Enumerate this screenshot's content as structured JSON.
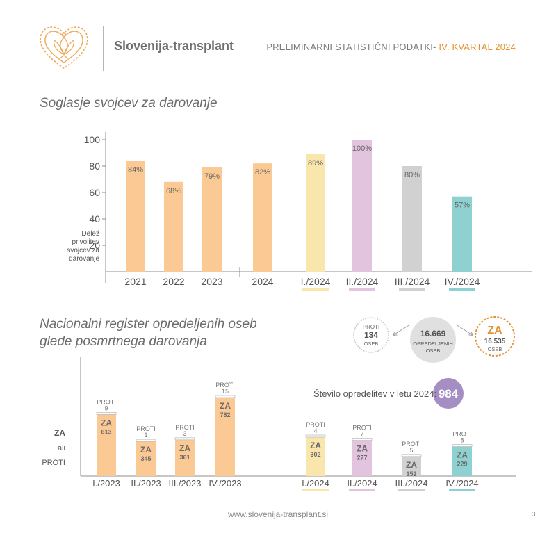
{
  "header": {
    "brand": "Slovenija-transplant",
    "title_prefix": "PRELIMINARNI STATISTIČNI PODATKI- ",
    "title_highlight": "IV. KVARTAL 2024"
  },
  "colors": {
    "orange": "#fbc994",
    "yellow": "#f9e6ac",
    "pink": "#e3c4de",
    "gray": "#d1d1d1",
    "teal": "#8fd0d0",
    "accent": "#e3922f",
    "purple": "#a58ec4"
  },
  "chart_data": [
    {
      "type": "bar",
      "title": "Soglasje svojcev za darovanje",
      "ylabel": "Delež privolitev svojcev za darovanje",
      "ylim": [
        0,
        110
      ],
      "yticks": [
        20,
        40,
        60,
        80,
        100
      ],
      "categories": [
        "2021",
        "2022",
        "2023",
        "2024",
        "I./2024",
        "II./2024",
        "III./2024",
        "IV./2024"
      ],
      "values": [
        84,
        68,
        79,
        82,
        89,
        100,
        80,
        57
      ],
      "labels": [
        "84%",
        "68%",
        "79%",
        "82%",
        "89%",
        "100%",
        "80%",
        "57%"
      ],
      "bar_colors": [
        "#fbc994",
        "#fbc994",
        "#fbc994",
        "#fbc994",
        "#f9e6ac",
        "#e3c4de",
        "#d1d1d1",
        "#8fd0d0"
      ],
      "underline_colors": [
        null,
        null,
        null,
        null,
        "#f9e6ac",
        "#e3c4de",
        "#d1d1d1",
        "#8fd0d0"
      ]
    },
    {
      "type": "bar",
      "stacked": true,
      "title": "Nacionalni register opredeljenih oseb glede posmrtnega darovanja",
      "ylabel_lines": [
        "ZA",
        "ali",
        "PROTI"
      ],
      "categories": [
        "I./2023",
        "II./2023",
        "III./2023",
        "IV./2023",
        "I./2024",
        "II./2024",
        "III./2024",
        "IV./2024"
      ],
      "series": [
        {
          "name": "ZA",
          "values": [
            613,
            345,
            361,
            782,
            302,
            277,
            152,
            229
          ]
        },
        {
          "name": "PROTI",
          "values": [
            9,
            1,
            3,
            15,
            4,
            7,
            5,
            8
          ]
        }
      ],
      "bar_colors": [
        "#fbc994",
        "#fbc994",
        "#fbc994",
        "#fbc994",
        "#f9e6ac",
        "#e3c4de",
        "#d1d1d1",
        "#8fd0d0"
      ],
      "underline_colors": [
        null,
        null,
        null,
        null,
        "#f9e6ac",
        "#e3c4de",
        "#d1d1d1",
        "#8fd0d0"
      ]
    }
  ],
  "register_summary": {
    "total_value": "16.669",
    "total_label": "OPREDELJENIH OSEB",
    "proti_label": "PROTI",
    "proti_value": "134",
    "proti_unit": "OSEB",
    "za_label": "ZA",
    "za_value": "16.535",
    "za_unit": "OSEB",
    "count_label": "Število opredelitev v letu 2024:",
    "count_value": "984"
  },
  "footer": {
    "url": "www.slovenija-transplant.si",
    "page": "3"
  }
}
